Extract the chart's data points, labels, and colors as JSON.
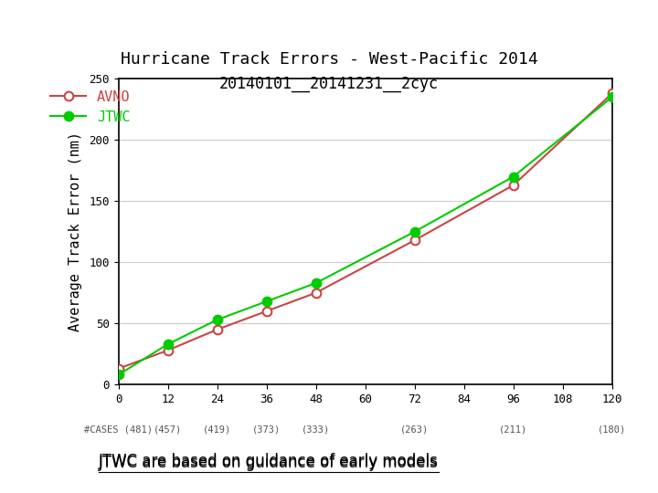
{
  "title_line1": "Hurricane Track Errors - West-Pacific 2014",
  "title_line2": "20140101__20141231__2cyc",
  "ylabel": "Average Track Error (nm)",
  "x_ticks": [
    0,
    12,
    24,
    36,
    48,
    60,
    72,
    84,
    96,
    108,
    120
  ],
  "x_cases": [
    "#CASES (481)",
    "(457)",
    "(419)",
    "(373)",
    "(333)",
    "",
    "(263)",
    "",
    "(211)",
    "",
    "(180)"
  ],
  "ylim": [
    0,
    250
  ],
  "xlim": [
    0,
    120
  ],
  "avno_x": [
    0,
    12,
    24,
    36,
    48,
    72,
    96,
    120
  ],
  "avno_y": [
    13,
    28,
    45,
    60,
    75,
    118,
    163,
    238
  ],
  "jtwc_x": [
    0,
    12,
    24,
    36,
    48,
    72,
    96,
    120
  ],
  "jtwc_y": [
    8,
    33,
    53,
    68,
    83,
    125,
    170,
    235
  ],
  "avno_color": "#cc4444",
  "jtwc_color": "#00cc00",
  "legend_avno": "AVNO",
  "legend_jtwc": "JTWC",
  "footnote": "JTWC are based on guidance of early models",
  "bg_color": "#ffffff",
  "grid_color": "#cccccc",
  "title_fontsize": 13,
  "label_fontsize": 11,
  "tick_fontsize": 9,
  "cases_fontsize": 7.5
}
